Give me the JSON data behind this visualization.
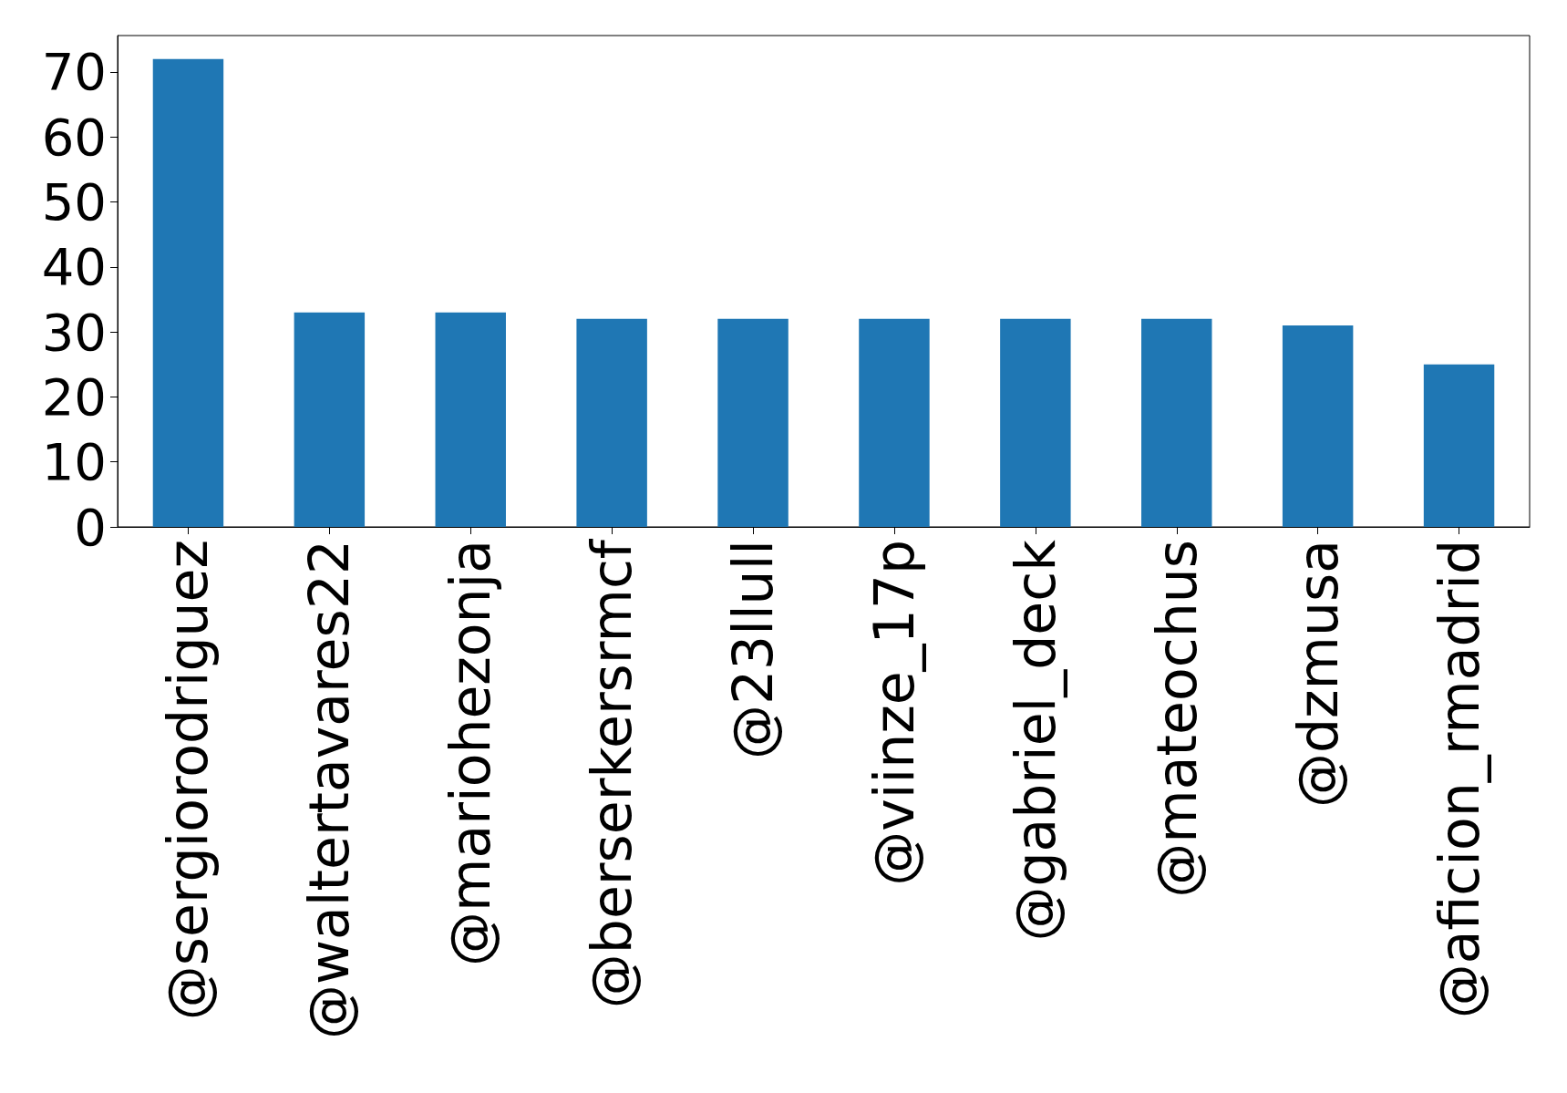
{
  "chart_data": {
    "type": "bar",
    "categories": [
      "@sergiorodriguez",
      "@waltertavares22",
      "@mariohezonja",
      "@berserkersrmcf",
      "@23llull",
      "@viinze_17p",
      "@gabriel_deck",
      "@mateochus",
      "@dzmusa",
      "@aficion_rmadrid"
    ],
    "values": [
      72,
      33,
      33,
      32,
      32,
      32,
      32,
      32,
      31,
      25
    ],
    "color": "#1f77b4",
    "ylim": [
      0,
      75.6
    ],
    "yticks": [
      0,
      10,
      20,
      30,
      40,
      50,
      60,
      70
    ],
    "grid": false
  }
}
